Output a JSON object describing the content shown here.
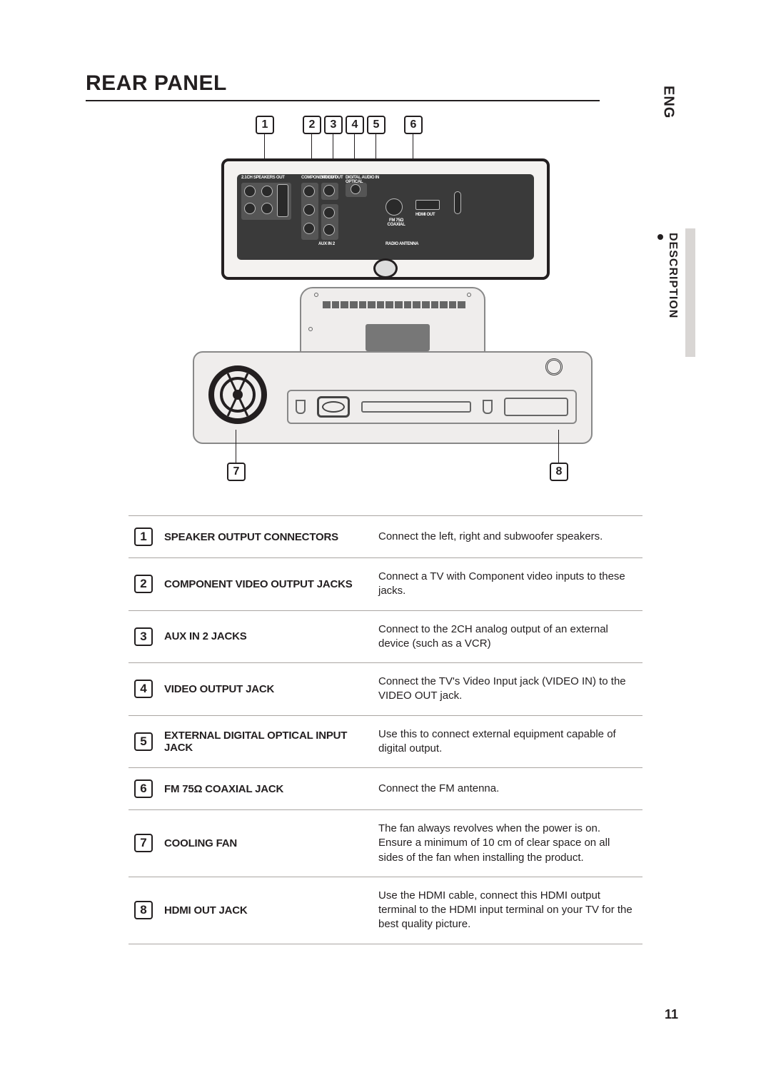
{
  "side": {
    "lang": "ENG",
    "section": "DESCRIPTION"
  },
  "title": "REAR PANEL",
  "page_number": "11",
  "callouts": {
    "top": [
      "1",
      "2",
      "3",
      "4",
      "5",
      "6"
    ],
    "bottom_left": "7",
    "bottom_right": "8"
  },
  "diagram_labels": {
    "speakers_out": "2.1CH SPEAKERS OUT",
    "component_out": "COMPONENT OUT",
    "video_out": "VIDEO OUT",
    "digital_in": "DIGITAL AUDIO IN OPTICAL",
    "aux_in2": "AUX IN 2",
    "fm_coax": "FM 75Ω COAXIAL",
    "hdmi_out": "HDMI OUT",
    "radio_ant": "RADIO ANTENNA"
  },
  "rows": [
    {
      "num": "1",
      "label": "SPEAKER OUTPUT CONNECTORS",
      "desc": "Connect the left, right and subwoofer speakers."
    },
    {
      "num": "2",
      "label": "COMPONENT VIDEO OUTPUT JACKS",
      "desc": "Connect a TV with Component video inputs to these jacks."
    },
    {
      "num": "3",
      "label": "AUX IN 2 JACKS",
      "desc": "Connect to the 2CH analog output of an external device (such as a VCR)"
    },
    {
      "num": "4",
      "label": "VIDEO OUTPUT JACK",
      "desc": "Connect the TV's Video Input jack (VIDEO IN) to the VIDEO OUT jack."
    },
    {
      "num": "5",
      "label": "EXTERNAL DIGITAL OPTICAL INPUT JACK",
      "desc": "Use this to connect external equipment capable of digital output."
    },
    {
      "num": "6",
      "label": "FM 75Ω COAXIAL JACK",
      "desc": "Connect the FM antenna."
    },
    {
      "num": "7",
      "label": "COOLING FAN",
      "desc": "The fan always revolves when the power is on. Ensure a minimum of 10 cm of clear space on all sides of the fan when installing the product."
    },
    {
      "num": "8",
      "label": "HDMI OUT JACK",
      "desc": "Use the HDMI cable, connect this HDMI output terminal to the HDMI input terminal on your TV for the best quality picture."
    }
  ],
  "colors": {
    "text": "#231f20",
    "rule": "#aaa6a2",
    "panel_bg": "#f4f2f0",
    "panel_dark": "#3a3a3a",
    "grey_tab": "#d9d6d4"
  }
}
